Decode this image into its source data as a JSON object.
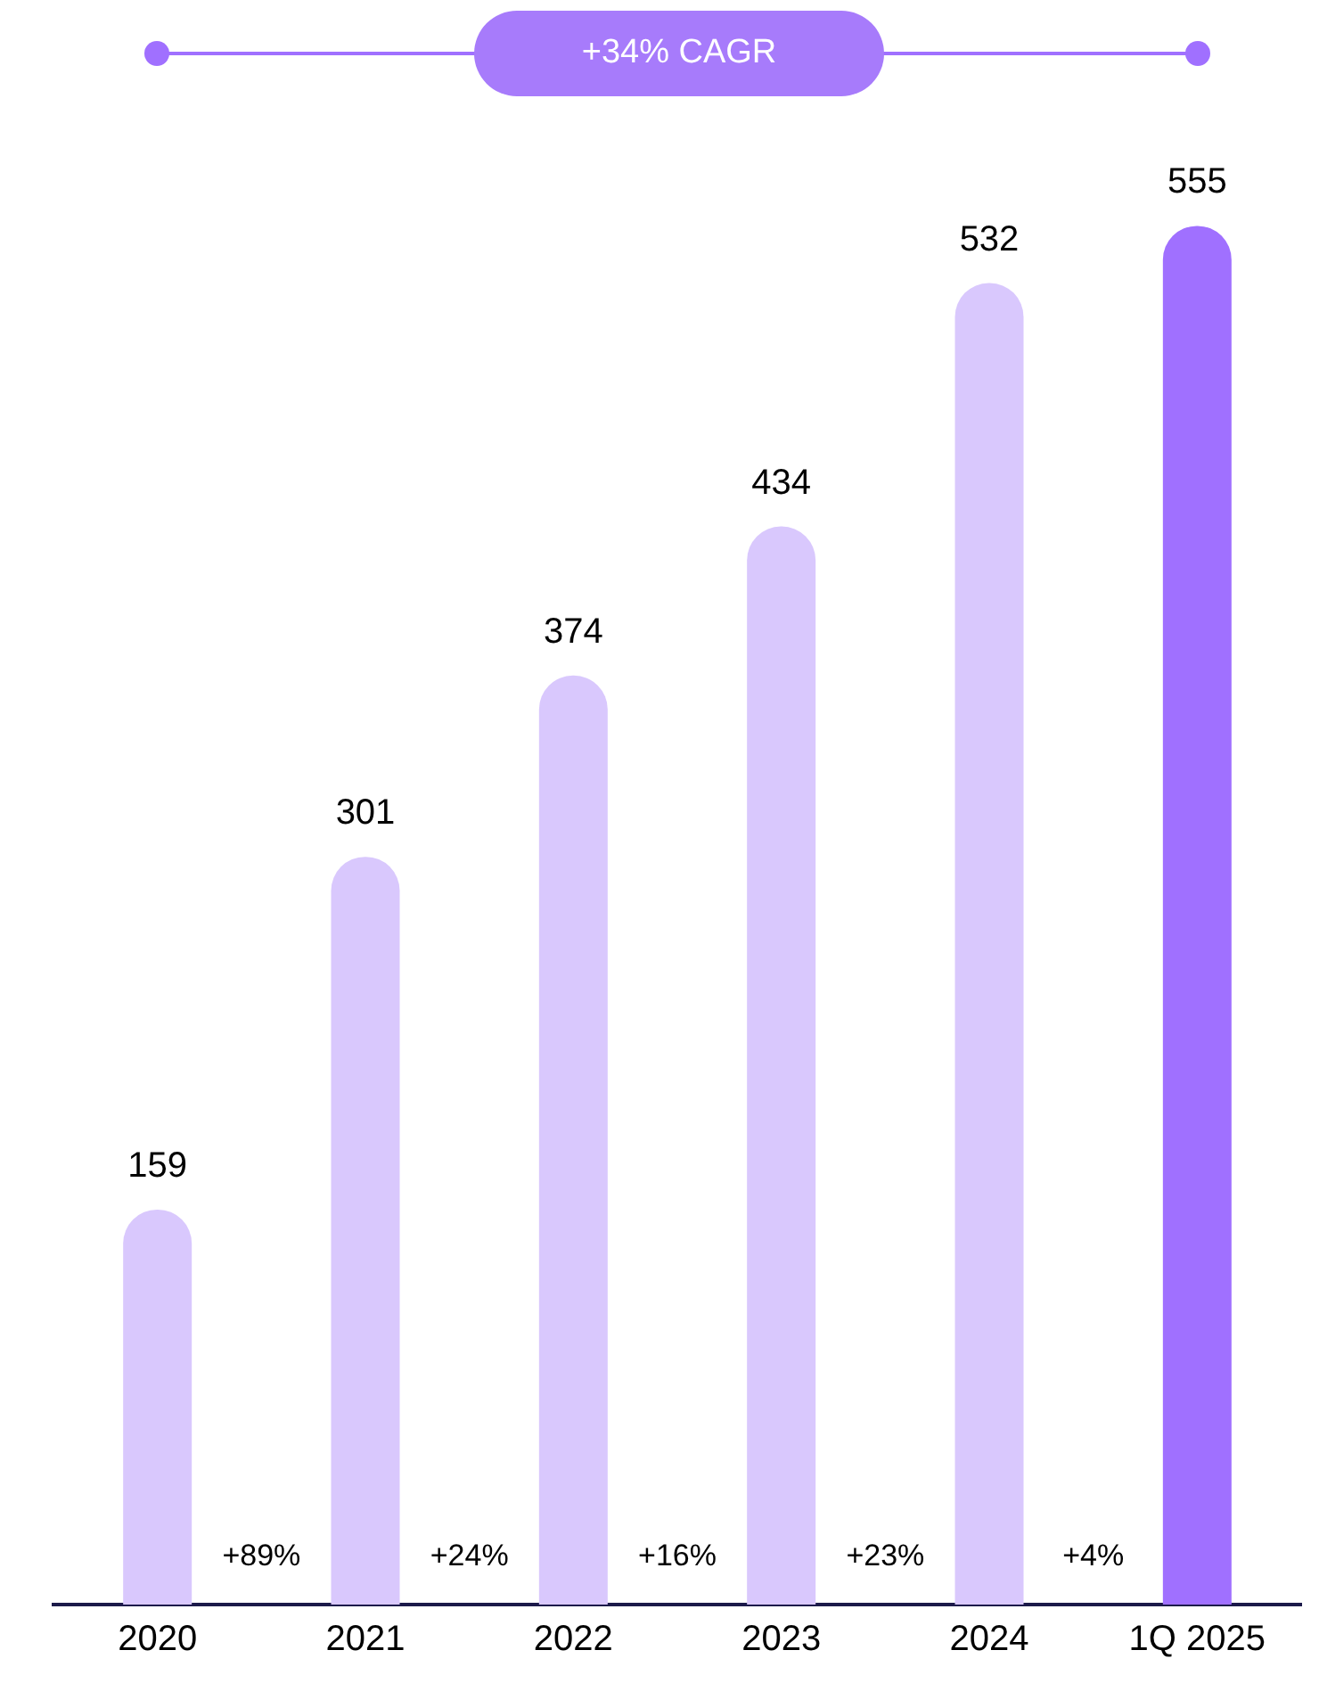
{
  "chart_data": {
    "type": "bar",
    "categories": [
      "2020",
      "2021",
      "2022",
      "2023",
      "2024",
      "1Q 2025"
    ],
    "values": [
      159,
      301,
      374,
      434,
      532,
      555
    ],
    "colors": [
      "#d9c8fd",
      "#d9c8fd",
      "#d9c8fd",
      "#d9c8fd",
      "#d9c8fd",
      "#a070ff"
    ],
    "data_labels": true,
    "grid": false,
    "legend": false,
    "annotations": [
      "+34% CAGR",
      "+89%",
      "+24%",
      "+16%",
      "+23%",
      "+4%"
    ]
  }
}
